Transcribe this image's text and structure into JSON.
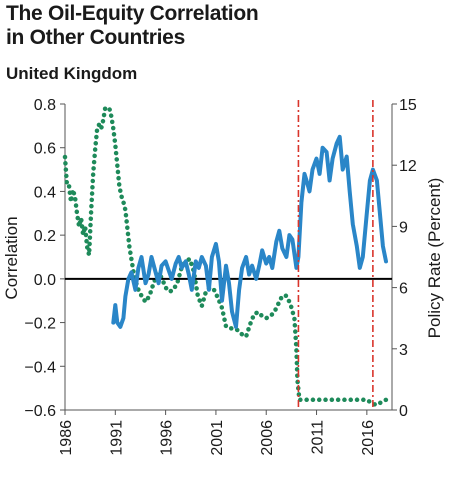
{
  "chart_data": {
    "type": "line",
    "title_line1": "The Oil-Equity Correlation",
    "title_line2": "in Other Countries",
    "subtitle": "United Kingdom",
    "ylabel": "Correlation",
    "y2label": "Policy Rate (Percent)",
    "ylim": [
      -0.6,
      0.8
    ],
    "y2lim": [
      0,
      15
    ],
    "xlim": [
      1986,
      2018.5
    ],
    "x_ticks": [
      "1986",
      "1991",
      "1996",
      "2001",
      "2006",
      "2011",
      "2016"
    ],
    "y_ticks": [
      "0.8",
      "0.6",
      "0.4",
      "0.2",
      "0.0",
      "−0.2",
      "−0.4",
      "−0.6"
    ],
    "y2_ticks": [
      "15",
      "12",
      "9",
      "6",
      "3",
      "0"
    ],
    "vlines": [
      2009.2,
      2016.6
    ],
    "colors": {
      "correlation": "#2a86c8",
      "policy_rate": "#1e8a5a",
      "zero_line": "#000000",
      "vline": "#d9342b"
    },
    "series": [
      {
        "name": "Correlation",
        "axis": "left",
        "x": [
          1990.8,
          1991.0,
          1991.2,
          1991.5,
          1991.8,
          1992.0,
          1992.3,
          1992.6,
          1993.0,
          1993.3,
          1993.6,
          1994.0,
          1994.3,
          1994.6,
          1995.0,
          1995.3,
          1995.6,
          1996.0,
          1996.3,
          1996.6,
          1997.0,
          1997.3,
          1997.6,
          1998.0,
          1998.3,
          1998.6,
          1999.0,
          1999.3,
          1999.6,
          2000.0,
          2000.3,
          2000.6,
          2001.0,
          2001.3,
          2001.6,
          2002.0,
          2002.3,
          2002.6,
          2003.0,
          2003.3,
          2003.6,
          2004.0,
          2004.3,
          2004.6,
          2005.0,
          2005.3,
          2005.6,
          2006.0,
          2006.3,
          2006.6,
          2007.0,
          2007.3,
          2007.6,
          2008.0,
          2008.3,
          2008.6,
          2009.0,
          2009.2,
          2009.5,
          2009.8,
          2010.0,
          2010.3,
          2010.6,
          2011.0,
          2011.3,
          2011.6,
          2012.0,
          2012.3,
          2012.6,
          2013.0,
          2013.3,
          2013.6,
          2014.0,
          2014.3,
          2014.6,
          2015.0,
          2015.3,
          2015.6,
          2016.0,
          2016.3,
          2016.6,
          2017.0,
          2017.3,
          2017.6,
          2017.9
        ],
        "values": [
          -0.2,
          -0.12,
          -0.2,
          -0.22,
          -0.18,
          -0.08,
          0.0,
          0.03,
          -0.05,
          0.05,
          0.1,
          -0.02,
          0.02,
          0.1,
          0.03,
          -0.02,
          0.06,
          0.08,
          0.04,
          0.0,
          0.07,
          0.1,
          0.05,
          0.08,
          0.02,
          -0.05,
          0.08,
          0.05,
          0.1,
          0.06,
          -0.05,
          0.1,
          0.16,
          0.08,
          -0.1,
          0.06,
          -0.02,
          -0.15,
          -0.22,
          -0.05,
          0.05,
          0.1,
          0.02,
          0.06,
          0.0,
          0.06,
          0.13,
          0.07,
          0.1,
          0.05,
          0.17,
          0.22,
          0.14,
          0.1,
          0.2,
          0.18,
          0.05,
          0.1,
          0.35,
          0.48,
          0.45,
          0.4,
          0.5,
          0.55,
          0.48,
          0.6,
          0.58,
          0.45,
          0.55,
          0.62,
          0.65,
          0.5,
          0.56,
          0.4,
          0.25,
          0.15,
          0.05,
          0.1,
          0.3,
          0.45,
          0.5,
          0.45,
          0.3,
          0.15,
          0.08
        ]
      },
      {
        "name": "Policy Rate",
        "axis": "right",
        "x": [
          1986.0,
          1986.2,
          1986.4,
          1986.6,
          1986.8,
          1987.0,
          1987.2,
          1987.4,
          1987.6,
          1987.8,
          1988.0,
          1988.2,
          1988.4,
          1988.6,
          1988.8,
          1989.0,
          1989.2,
          1989.4,
          1989.6,
          1989.8,
          1990.0,
          1990.2,
          1990.4,
          1990.6,
          1990.8,
          1991.0,
          1991.2,
          1991.4,
          1991.6,
          1991.8,
          1992.0,
          1992.4,
          1992.8,
          1993.2,
          1993.6,
          1994.0,
          1994.4,
          1994.8,
          1995.2,
          1995.6,
          1996.0,
          1996.4,
          1996.8,
          1997.2,
          1997.6,
          1998.0,
          1998.4,
          1998.8,
          1999.2,
          1999.6,
          2000.0,
          2000.4,
          2000.8,
          2001.2,
          2001.6,
          2002.0,
          2002.4,
          2002.8,
          2003.2,
          2003.6,
          2004.0,
          2004.4,
          2004.8,
          2005.2,
          2005.6,
          2006.0,
          2006.4,
          2006.8,
          2007.2,
          2007.6,
          2008.0,
          2008.4,
          2008.8,
          2009.0,
          2009.1,
          2009.3,
          2010.0,
          2011.0,
          2012.0,
          2013.0,
          2014.0,
          2015.0,
          2016.0,
          2016.6,
          2017.0,
          2017.5,
          2017.9
        ],
        "values": [
          12.4,
          11.0,
          11.0,
          10.2,
          10.8,
          10.4,
          9.6,
          9.0,
          9.4,
          8.6,
          9.0,
          8.0,
          7.6,
          9.8,
          11.6,
          12.8,
          13.8,
          14.0,
          13.8,
          14.2,
          14.8,
          14.8,
          14.8,
          14.4,
          13.8,
          13.0,
          12.0,
          11.0,
          10.5,
          10.2,
          9.8,
          8.0,
          6.8,
          6.0,
          5.6,
          5.3,
          5.6,
          6.2,
          6.7,
          6.5,
          6.0,
          5.8,
          5.9,
          6.3,
          7.0,
          7.3,
          7.4,
          6.8,
          5.6,
          5.1,
          5.8,
          6.0,
          5.9,
          5.5,
          5.0,
          4.1,
          4.0,
          4.0,
          3.9,
          3.7,
          3.6,
          4.2,
          4.7,
          4.8,
          4.6,
          4.5,
          4.6,
          4.8,
          5.2,
          5.6,
          5.6,
          5.2,
          4.5,
          3.0,
          1.5,
          0.5,
          0.5,
          0.5,
          0.5,
          0.5,
          0.5,
          0.5,
          0.5,
          0.3,
          0.25,
          0.4,
          0.5
        ]
      }
    ]
  }
}
